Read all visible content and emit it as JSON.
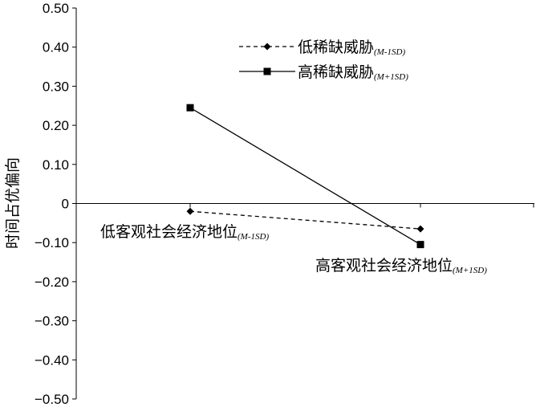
{
  "chart_data": {
    "type": "line",
    "ylabel": "时间占优偏向",
    "ylim": [
      -0.5,
      0.5
    ],
    "yticks": [
      "0.50",
      "0.40",
      "0.30",
      "0.20",
      "0.10",
      "0",
      "−0.10",
      "−0.20",
      "−0.30",
      "−0.40",
      "−0.50"
    ],
    "categories": [
      {
        "main": "低客观社会经济地位",
        "sub": "(M-1SD)"
      },
      {
        "main": "高客观社会经济地位",
        "sub": "(M+1SD)"
      }
    ],
    "series": [
      {
        "name": "低稀缺威胁",
        "sub": "(M-1SD)",
        "style": "dashed",
        "marker": "diamond",
        "values": [
          -0.02,
          -0.065
        ]
      },
      {
        "name": "高稀缺威胁",
        "sub": "(M+1SD)",
        "style": "solid",
        "marker": "square",
        "values": [
          0.245,
          -0.105
        ]
      }
    ],
    "legend_position": "top-right",
    "colors": {
      "line": "#000000"
    }
  }
}
